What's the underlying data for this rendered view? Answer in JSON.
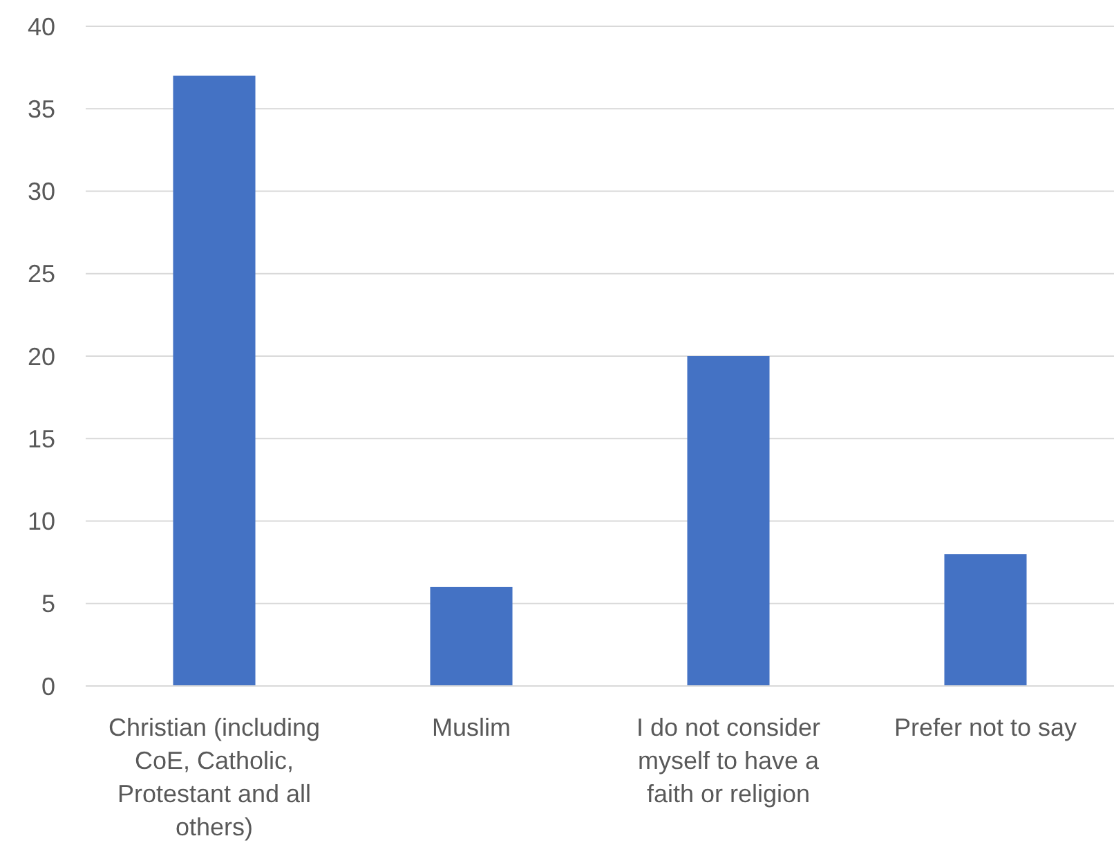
{
  "chart_data": {
    "type": "bar",
    "categories": [
      "Christian (including CoE, Catholic, Protestant and all others)",
      "Muslim",
      "I do not consider myself to have a faith or religion",
      "Prefer not to say"
    ],
    "values": [
      37,
      6,
      20,
      8
    ],
    "color": "#4472c4",
    "ylim": [
      0,
      40
    ],
    "yticks": [
      0,
      5,
      10,
      15,
      20,
      25,
      30,
      35,
      40
    ],
    "grid": "y"
  }
}
